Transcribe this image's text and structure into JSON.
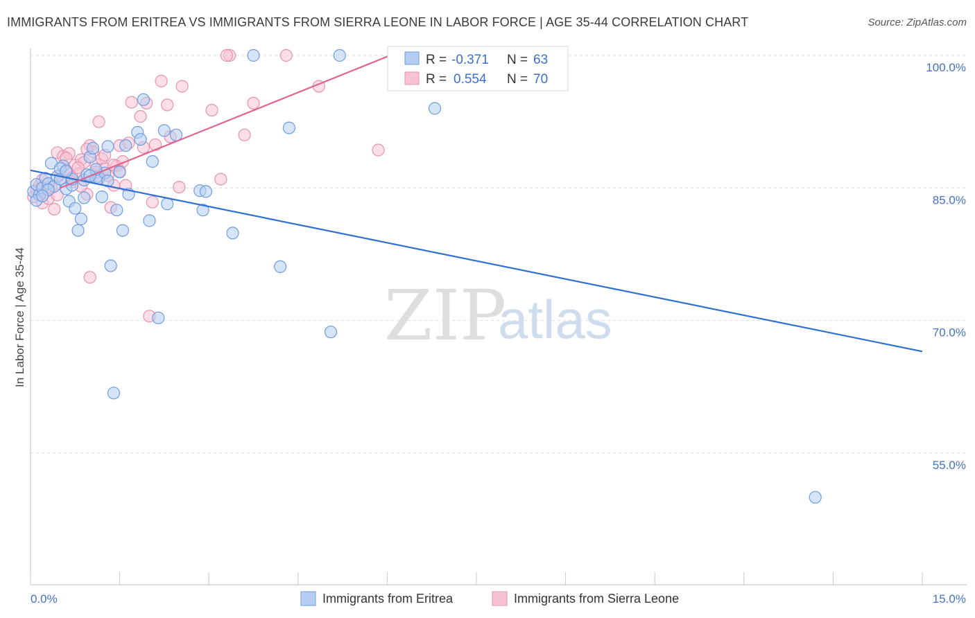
{
  "title": "IMMIGRANTS FROM ERITREA VS IMMIGRANTS FROM SIERRA LEONE IN LABOR FORCE | AGE 35-44 CORRELATION CHART",
  "source": "Source: ZipAtlas.com",
  "watermark": {
    "zip": "ZIP",
    "atlas": "atlas"
  },
  "stats": {
    "eritrea": {
      "r_label": "R =",
      "r_value": "-0.371",
      "n_label": "N =",
      "n_value": "63"
    },
    "sierra_leone": {
      "r_label": "R =",
      "r_value": "0.554",
      "n_label": "N =",
      "n_value": "70"
    }
  },
  "chart_data": {
    "type": "scatter",
    "title": "IMMIGRANTS FROM ERITREA VS IMMIGRANTS FROM SIERRA LEONE IN LABOR FORCE | AGE 35-44 CORRELATION CHART",
    "xlabel": "",
    "ylabel": "In Labor Force | Age 35-44",
    "xlim": [
      0,
      15
    ],
    "ylim": [
      42,
      102
    ],
    "x_tick_labels": [
      "0.0%",
      "15.0%"
    ],
    "y_ticks": [
      55,
      70,
      85,
      100
    ],
    "y_tick_labels": [
      "55.0%",
      "70.0%",
      "85.0%",
      "100.0%"
    ],
    "grid": "horizontal dashed",
    "legend_position": "bottom-center",
    "series": [
      {
        "name": "Immigrants from Eritrea",
        "color": "#6f9ce0",
        "fill": "#b5cdf2",
        "trend": {
          "x": [
            0.0,
            15.0
          ],
          "y": [
            87.0,
            66.5
          ],
          "color": "#2f6fd0"
        },
        "points": [
          [
            0.05,
            84.6
          ],
          [
            0.1,
            85.4
          ],
          [
            0.15,
            84.2
          ],
          [
            0.2,
            85.0
          ],
          [
            0.25,
            86.1
          ],
          [
            0.3,
            85.5
          ],
          [
            0.35,
            87.8
          ],
          [
            0.4,
            85.2
          ],
          [
            0.45,
            86.3
          ],
          [
            0.5,
            86.0
          ],
          [
            0.55,
            87.5
          ],
          [
            0.6,
            84.9
          ],
          [
            0.65,
            83.5
          ],
          [
            0.7,
            85.3
          ],
          [
            0.75,
            82.7
          ],
          [
            0.8,
            80.2
          ],
          [
            0.85,
            81.5
          ],
          [
            0.9,
            85.9
          ],
          [
            0.95,
            86.5
          ],
          [
            1.0,
            88.5
          ],
          [
            1.05,
            89.5
          ],
          [
            1.1,
            86.2
          ],
          [
            1.15,
            86.1
          ],
          [
            1.2,
            84.0
          ],
          [
            1.25,
            86.7
          ],
          [
            1.3,
            89.7
          ],
          [
            1.35,
            76.2
          ],
          [
            1.4,
            61.8
          ],
          [
            1.45,
            82.5
          ],
          [
            1.5,
            86.8
          ],
          [
            1.55,
            80.2
          ],
          [
            1.6,
            89.8
          ],
          [
            1.65,
            84.3
          ],
          [
            1.8,
            91.3
          ],
          [
            1.85,
            90.5
          ],
          [
            1.9,
            95.0
          ],
          [
            2.0,
            81.3
          ],
          [
            2.05,
            88.0
          ],
          [
            2.15,
            70.3
          ],
          [
            2.25,
            91.5
          ],
          [
            2.3,
            83.2
          ],
          [
            2.45,
            91.0
          ],
          [
            2.85,
            84.7
          ],
          [
            2.9,
            82.5
          ],
          [
            2.95,
            84.6
          ],
          [
            3.4,
            79.9
          ],
          [
            3.75,
            100.0
          ],
          [
            4.2,
            76.1
          ],
          [
            4.35,
            91.8
          ],
          [
            5.05,
            68.7
          ],
          [
            5.2,
            100.0
          ],
          [
            6.8,
            94.0
          ],
          [
            13.2,
            50.0
          ],
          [
            0.1,
            83.6
          ],
          [
            0.3,
            84.8
          ],
          [
            0.5,
            87.2
          ],
          [
            0.7,
            86.0
          ],
          [
            0.9,
            83.9
          ],
          [
            1.1,
            87.1
          ],
          [
            1.3,
            85.8
          ],
          [
            0.2,
            84.1
          ],
          [
            0.6,
            86.9
          ],
          [
            1.0,
            86.4
          ]
        ]
      },
      {
        "name": "Immigrants from Sierra Leone",
        "color": "#e891ad",
        "fill": "#f7c3d3",
        "trend": {
          "x": [
            0.5,
            6.05
          ],
          "y": [
            85.0,
            100.0
          ],
          "color": "#de6390"
        },
        "points": [
          [
            0.05,
            84.0
          ],
          [
            0.1,
            84.8
          ],
          [
            0.15,
            85.3
          ],
          [
            0.2,
            83.3
          ],
          [
            0.25,
            84.5
          ],
          [
            0.3,
            83.8
          ],
          [
            0.35,
            85.0
          ],
          [
            0.4,
            82.6
          ],
          [
            0.45,
            89.0
          ],
          [
            0.5,
            86.5
          ],
          [
            0.55,
            88.6
          ],
          [
            0.6,
            87.0
          ],
          [
            0.65,
            88.9
          ],
          [
            0.7,
            86.2
          ],
          [
            0.75,
            87.6
          ],
          [
            0.8,
            86.6
          ],
          [
            0.85,
            88.2
          ],
          [
            0.9,
            87.9
          ],
          [
            0.95,
            84.3
          ],
          [
            1.0,
            89.8
          ],
          [
            1.05,
            89.1
          ],
          [
            1.1,
            87.7
          ],
          [
            1.15,
            92.5
          ],
          [
            1.2,
            88.3
          ],
          [
            1.25,
            87.2
          ],
          [
            1.3,
            86.4
          ],
          [
            1.35,
            82.8
          ],
          [
            1.4,
            85.3
          ],
          [
            1.45,
            87.5
          ],
          [
            1.5,
            89.8
          ],
          [
            1.55,
            88.0
          ],
          [
            1.6,
            85.3
          ],
          [
            1.65,
            90.1
          ],
          [
            1.7,
            94.7
          ],
          [
            1.85,
            93.1
          ],
          [
            1.9,
            89.6
          ],
          [
            1.95,
            94.6
          ],
          [
            2.0,
            70.5
          ],
          [
            2.05,
            83.4
          ],
          [
            2.1,
            89.9
          ],
          [
            2.2,
            97.1
          ],
          [
            2.3,
            94.4
          ],
          [
            2.35,
            90.8
          ],
          [
            2.5,
            85.1
          ],
          [
            2.55,
            96.5
          ],
          [
            3.05,
            93.8
          ],
          [
            3.2,
            86.0
          ],
          [
            3.35,
            100.0
          ],
          [
            3.6,
            91.0
          ],
          [
            3.75,
            94.6
          ],
          [
            4.3,
            100.0
          ],
          [
            4.85,
            96.5
          ],
          [
            5.85,
            89.3
          ],
          [
            1.0,
            74.9
          ],
          [
            0.3,
            85.5
          ],
          [
            0.55,
            85.8
          ],
          [
            0.8,
            87.3
          ],
          [
            1.15,
            86.3
          ],
          [
            1.4,
            87.6
          ],
          [
            0.15,
            84.7
          ],
          [
            0.45,
            84.2
          ],
          [
            0.7,
            85.7
          ],
          [
            0.95,
            89.4
          ],
          [
            1.25,
            88.7
          ],
          [
            1.5,
            86.9
          ],
          [
            0.2,
            85.9
          ],
          [
            0.6,
            88.4
          ],
          [
            0.85,
            85.2
          ],
          [
            1.1,
            86.8
          ],
          [
            3.3,
            100.0
          ]
        ]
      }
    ]
  }
}
